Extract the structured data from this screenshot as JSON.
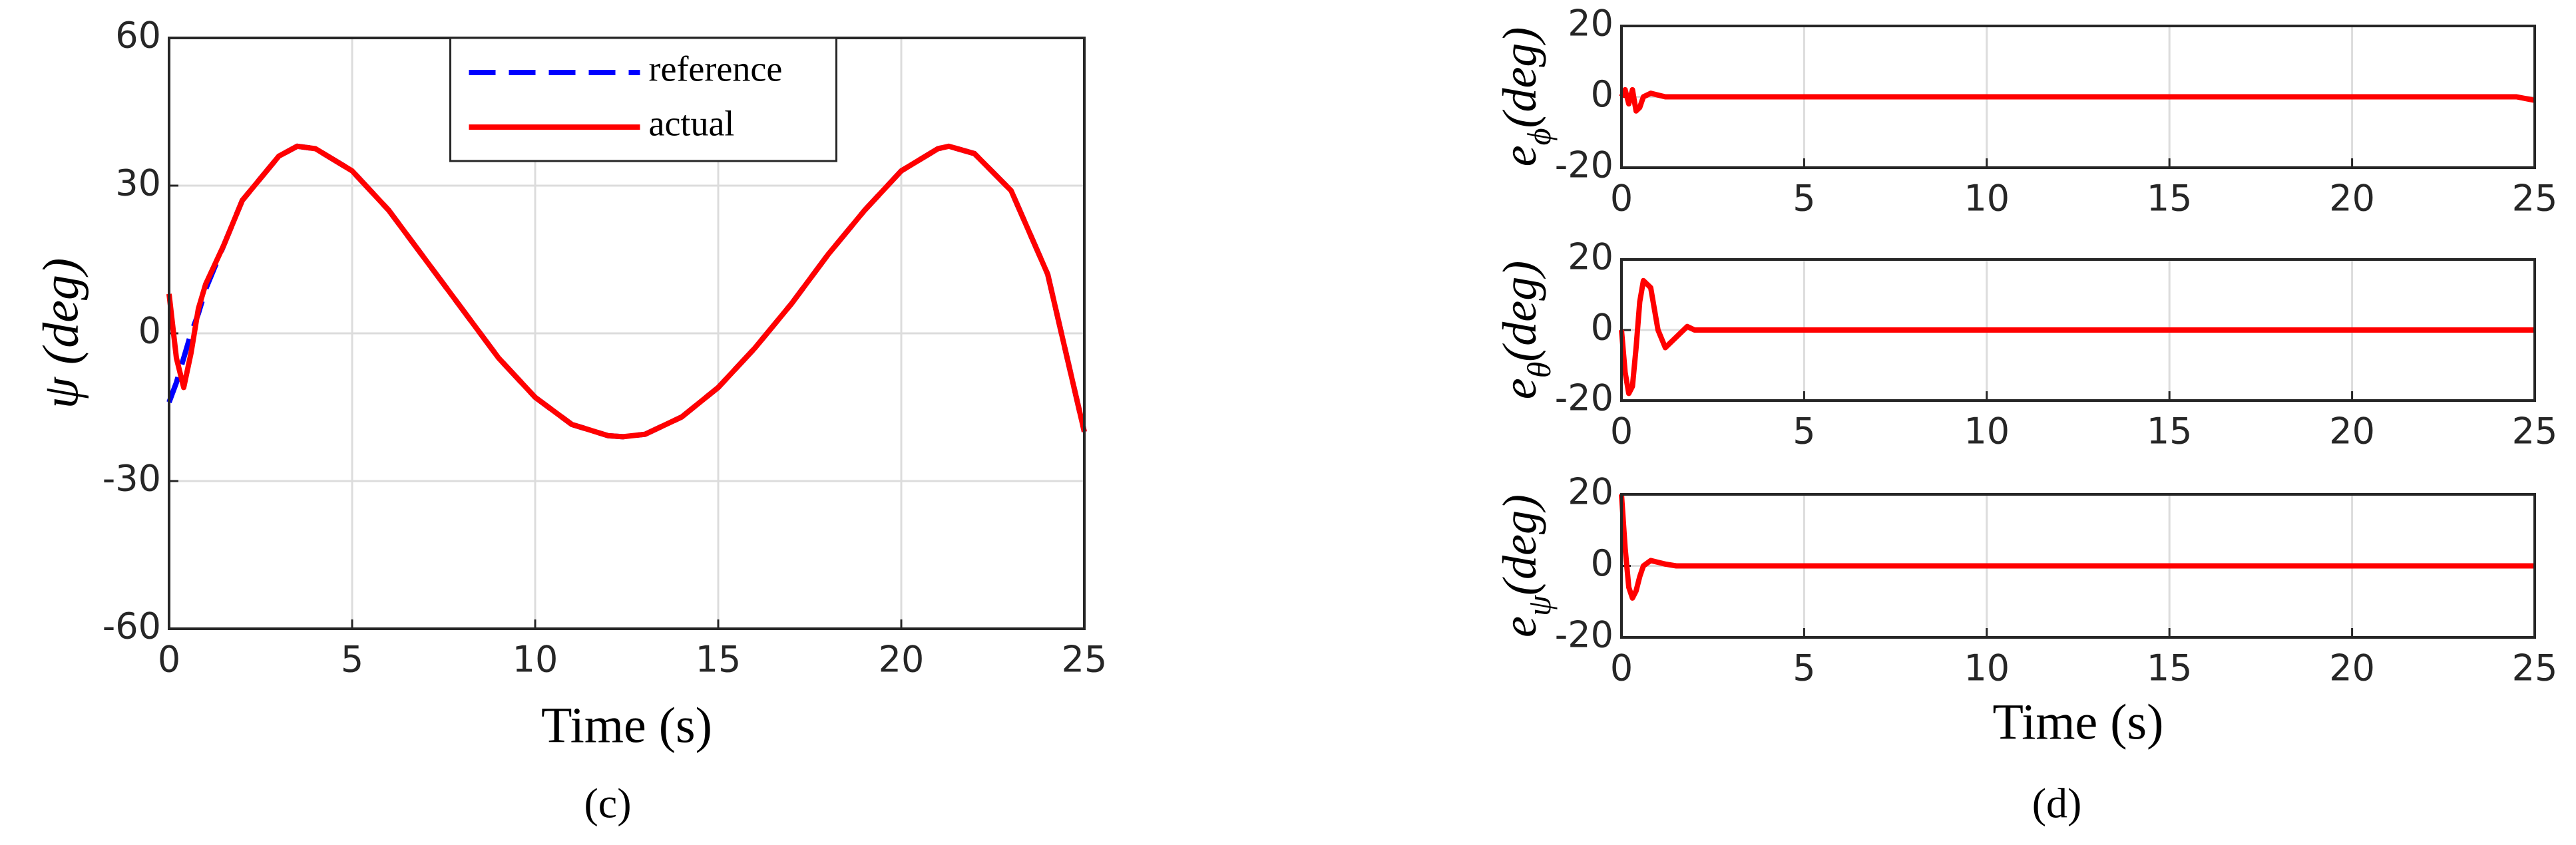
{
  "panel_labels": [
    "(c)",
    "(d)"
  ],
  "chart_data": [
    {
      "type": "line",
      "xlabel": "Time (s)",
      "ylabel": "ψ (deg)",
      "x": [
        0,
        0.2,
        0.4,
        0.6,
        0.8,
        1,
        1.5,
        2,
        3,
        3.5,
        4,
        5,
        6,
        7,
        8,
        9,
        10,
        11,
        12,
        12.4,
        13,
        14,
        15,
        16,
        17,
        18,
        19,
        20,
        21,
        21.3,
        22,
        23,
        24,
        25
      ],
      "series": [
        {
          "name": "reference",
          "color": "#0000ff",
          "linestyle": "dashed",
          "values": [
            -14,
            -10,
            -5,
            0,
            4,
            9,
            18,
            27,
            36,
            38,
            37.5,
            33,
            25,
            15,
            5,
            -5,
            -13,
            -18.5,
            -20.8,
            -21,
            -20.5,
            -17,
            -11,
            -3,
            6,
            16,
            25,
            33,
            37.5,
            38,
            36.5,
            29,
            12,
            -20
          ]
        },
        {
          "name": "actual",
          "color": "#ff0000",
          "linestyle": "solid",
          "values": [
            8,
            -5,
            -11,
            -4,
            5,
            10,
            18,
            27,
            36,
            38,
            37.5,
            33,
            25,
            15,
            5,
            -5,
            -13,
            -18.5,
            -20.8,
            -21,
            -20.5,
            -17,
            -11,
            -3,
            6,
            16,
            25,
            33,
            37.5,
            38,
            36.5,
            29,
            12,
            -20
          ]
        }
      ],
      "xlim": [
        0,
        25
      ],
      "ylim": [
        -60,
        60
      ],
      "xticks": [
        0,
        5,
        10,
        15,
        20,
        25
      ],
      "yticks": [
        -60,
        -30,
        0,
        30,
        60
      ],
      "grid": true,
      "legend": "upper center"
    },
    {
      "type": "line",
      "ylabel": [
        "e",
        "ϕ",
        "(deg)"
      ],
      "x": [
        0,
        0.1,
        0.2,
        0.3,
        0.4,
        0.5,
        0.6,
        0.8,
        1,
        1.2,
        1.5,
        1.8,
        2,
        5,
        10,
        15,
        20,
        24.5,
        25
      ],
      "series": [
        {
          "color": "#ff0000",
          "linestyle": "solid",
          "values": [
            0,
            2,
            -2,
            2,
            -4,
            -3,
            0,
            1,
            0.5,
            0,
            0,
            0,
            0,
            0,
            0,
            0,
            0,
            0,
            -1
          ]
        }
      ],
      "xlim": [
        0,
        25
      ],
      "ylim": [
        -20,
        20
      ],
      "xticks": [
        0,
        5,
        10,
        15,
        20,
        25
      ],
      "yticks": [
        -20,
        0,
        20
      ],
      "grid": true
    },
    {
      "type": "line",
      "ylabel": [
        "e",
        "θ",
        "(deg)"
      ],
      "x": [
        0,
        0.1,
        0.2,
        0.3,
        0.4,
        0.5,
        0.6,
        0.8,
        1,
        1.2,
        1.5,
        1.8,
        2,
        5,
        10,
        15,
        20,
        24.5,
        25
      ],
      "series": [
        {
          "color": "#ff0000",
          "linestyle": "solid",
          "values": [
            0,
            -12,
            -18,
            -16,
            -5,
            8,
            14,
            12,
            0,
            -5,
            -2,
            1,
            0,
            0,
            0,
            0,
            0,
            0,
            0
          ]
        }
      ],
      "xlim": [
        0,
        25
      ],
      "ylim": [
        -20,
        20
      ],
      "xticks": [
        0,
        5,
        10,
        15,
        20,
        25
      ],
      "yticks": [
        -20,
        0,
        20
      ],
      "grid": true
    },
    {
      "type": "line",
      "ylabel": [
        "e",
        "ψ",
        "(deg)"
      ],
      "xlabel": "Time (s)",
      "x": [
        0,
        0.1,
        0.2,
        0.3,
        0.4,
        0.5,
        0.6,
        0.8,
        1,
        1.2,
        1.5,
        1.8,
        2,
        5,
        10,
        15,
        20,
        24.5,
        25
      ],
      "series": [
        {
          "color": "#ff0000",
          "linestyle": "solid",
          "values": [
            20,
            5,
            -6,
            -9,
            -7,
            -3,
            0,
            1.5,
            1,
            0.5,
            0,
            0,
            0,
            0,
            0,
            0,
            0,
            0,
            0
          ]
        }
      ],
      "xlim": [
        0,
        25
      ],
      "ylim": [
        -20,
        20
      ],
      "xticks": [
        0,
        5,
        10,
        15,
        20,
        25
      ],
      "yticks": [
        -20,
        0,
        20
      ],
      "grid": true
    }
  ]
}
